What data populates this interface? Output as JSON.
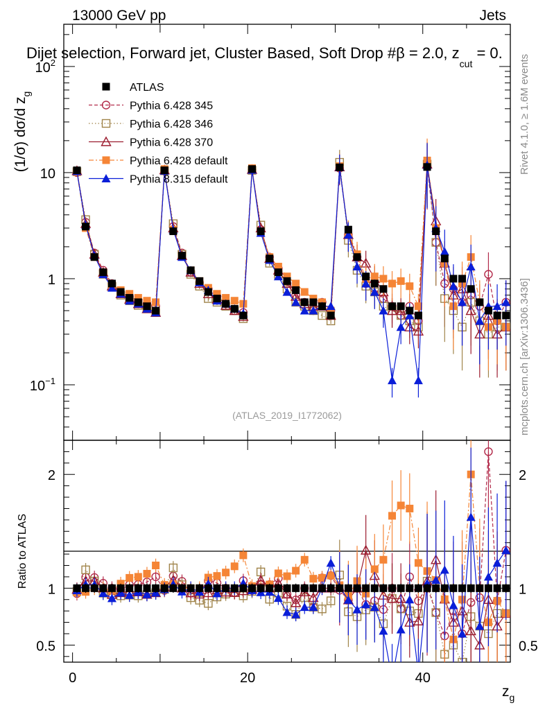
{
  "header": {
    "energy_label": "13000 GeV pp",
    "process_label": "Jets",
    "subtitle": "Dijet selection, Forward jet, Cluster Based, Soft Drop #β = 2.0, z_cut = 0.",
    "side_rivet": "Rivet 4.1.0, ≥ 1.6M events",
    "side_mcplots": "mcplots.cern.ch [arXiv:1306.3436]",
    "watermark": "(ATLAS_2019_I1772062)"
  },
  "chart_data": {
    "type": "scatter",
    "title": "Dijet selection, Forward jet, Cluster Based, Soft Drop #β = 2.0, z_cut = 0.",
    "xlabel": "z_g",
    "ylabel": "(1/σ) dσ/d z_g",
    "ratio_ylabel": "Ratio to ATLAS",
    "xlim": [
      -1,
      50
    ],
    "ylim": [
      0.03,
      250
    ],
    "yscale": "log",
    "ratio_ylim": [
      0.35,
      2.3
    ],
    "x_ticks": [
      "0",
      "20",
      "40"
    ],
    "y_ticks": [
      "10^-1",
      "1",
      "10",
      "10^2"
    ],
    "ratio_ticks": [
      "0.5",
      "1",
      "2"
    ],
    "x": [
      0.5,
      1.5,
      2.5,
      3.5,
      4.5,
      5.5,
      6.5,
      7.5,
      8.5,
      9.5,
      10.5,
      11.5,
      12.5,
      13.5,
      14.5,
      15.5,
      16.5,
      17.5,
      18.5,
      19.5,
      20.5,
      21.5,
      22.5,
      23.5,
      24.5,
      25.5,
      26.5,
      27.5,
      28.5,
      29.5,
      30.5,
      31.5,
      32.5,
      33.5,
      34.5,
      35.5,
      36.5,
      37.5,
      38.5,
      39.5,
      40.5,
      41.5,
      42.5,
      43.5,
      44.5,
      45.5,
      46.5,
      47.5,
      48.5,
      49.5
    ],
    "series": [
      {
        "name": "ATLAS",
        "color": "#000000",
        "marker": "square-filled",
        "line": "none",
        "values": [
          10.5,
          3.1,
          1.6,
          1.15,
          0.9,
          0.75,
          0.66,
          0.6,
          0.55,
          0.5,
          10.5,
          2.8,
          1.65,
          1.2,
          0.95,
          0.75,
          0.65,
          0.58,
          0.52,
          0.45,
          10.8,
          2.8,
          1.55,
          1.15,
          0.95,
          0.78,
          0.6,
          0.6,
          0.55,
          0.45,
          11.2,
          2.9,
          1.6,
          1.05,
          0.9,
          0.8,
          0.55,
          0.55,
          0.5,
          0.45,
          11.3,
          2.8,
          1.55,
          1.0,
          1.0,
          0.8,
          0.6,
          0.5,
          0.45,
          0.45
        ]
      },
      {
        "name": "Pythia 6.428 345",
        "color": "#b22a4a",
        "marker": "circle-open",
        "line": "dashed",
        "values": [
          10.0,
          3.4,
          1.75,
          1.2,
          0.9,
          0.74,
          0.68,
          0.62,
          0.58,
          0.55,
          10.3,
          3.1,
          1.75,
          1.15,
          0.92,
          0.8,
          0.68,
          0.58,
          0.5,
          0.48,
          10.6,
          2.9,
          1.6,
          1.25,
          0.9,
          0.7,
          0.6,
          0.5,
          0.6,
          0.5,
          11.0,
          2.6,
          1.6,
          0.9,
          0.8,
          0.65,
          0.55,
          0.45,
          0.55,
          0.4,
          11.5,
          2.2,
          0.9,
          0.8,
          0.6,
          0.7,
          0.55,
          1.1,
          0.4,
          0.6
        ]
      },
      {
        "name": "Pythia 6.428 346",
        "color": "#a0844a",
        "marker": "square-open",
        "line": "dotted",
        "values": [
          10.2,
          3.6,
          1.7,
          1.1,
          0.85,
          0.7,
          0.62,
          0.56,
          0.52,
          0.48,
          10.4,
          3.3,
          1.7,
          1.1,
          0.85,
          0.65,
          0.6,
          0.55,
          0.5,
          0.42,
          10.5,
          3.2,
          1.4,
          1.1,
          0.8,
          0.6,
          0.55,
          0.5,
          0.45,
          0.4,
          12.5,
          2.3,
          1.2,
          0.85,
          0.75,
          0.55,
          0.5,
          0.45,
          0.4,
          0.35,
          12.0,
          2.2,
          0.65,
          0.5,
          0.35,
          0.6,
          0.4,
          0.3,
          0.35,
          0.35
        ]
      },
      {
        "name": "Pythia 6.428 370",
        "color": "#9b1b2e",
        "marker": "triangle-open",
        "line": "solid",
        "values": [
          10.4,
          3.3,
          1.7,
          1.15,
          0.85,
          0.72,
          0.64,
          0.58,
          0.52,
          0.48,
          10.6,
          3.0,
          1.65,
          1.15,
          0.9,
          0.72,
          0.64,
          0.56,
          0.5,
          0.44,
          10.7,
          3.0,
          1.55,
          1.2,
          0.9,
          0.68,
          0.58,
          0.55,
          0.55,
          0.45,
          11.3,
          2.6,
          1.6,
          1.4,
          1.0,
          0.75,
          0.5,
          0.5,
          0.35,
          0.32,
          12.0,
          3.5,
          1.4,
          0.7,
          0.8,
          0.5,
          0.3,
          0.45,
          0.3,
          0.35
        ]
      },
      {
        "name": "Pythia 6.428 default",
        "color": "#f58536",
        "marker": "square-filled",
        "line": "dashdot",
        "values": [
          10.1,
          3.0,
          1.6,
          1.15,
          0.88,
          0.78,
          0.72,
          0.66,
          0.62,
          0.6,
          10.8,
          2.9,
          1.65,
          1.2,
          0.95,
          0.82,
          0.72,
          0.66,
          0.62,
          0.58,
          11.0,
          2.8,
          1.6,
          1.3,
          1.05,
          0.9,
          0.75,
          0.65,
          0.6,
          0.5,
          11.5,
          2.7,
          1.7,
          1.0,
          1.05,
          1.0,
          0.9,
          0.95,
          0.85,
          0.55,
          13.0,
          3.0,
          1.4,
          0.55,
          0.9,
          1.6,
          0.6,
          0.35,
          0.4,
          0.35
        ]
      },
      {
        "name": "Pythia 8.315 default",
        "color": "#0a1ed8",
        "marker": "triangle-filled",
        "line": "solid",
        "values": [
          10.3,
          3.2,
          1.65,
          1.1,
          0.82,
          0.72,
          0.62,
          0.58,
          0.52,
          0.48,
          10.4,
          2.9,
          1.6,
          1.2,
          0.92,
          0.78,
          0.62,
          0.58,
          0.52,
          0.47,
          10.6,
          2.7,
          1.5,
          1.05,
          0.75,
          0.6,
          0.5,
          0.5,
          0.55,
          0.55,
          11.3,
          2.6,
          1.3,
          0.9,
          0.75,
          0.5,
          0.11,
          0.35,
          0.45,
          0.11,
          11.8,
          3.0,
          1.8,
          0.85,
          0.6,
          1.3,
          0.4,
          0.55,
          0.55,
          0.6
        ]
      }
    ]
  }
}
